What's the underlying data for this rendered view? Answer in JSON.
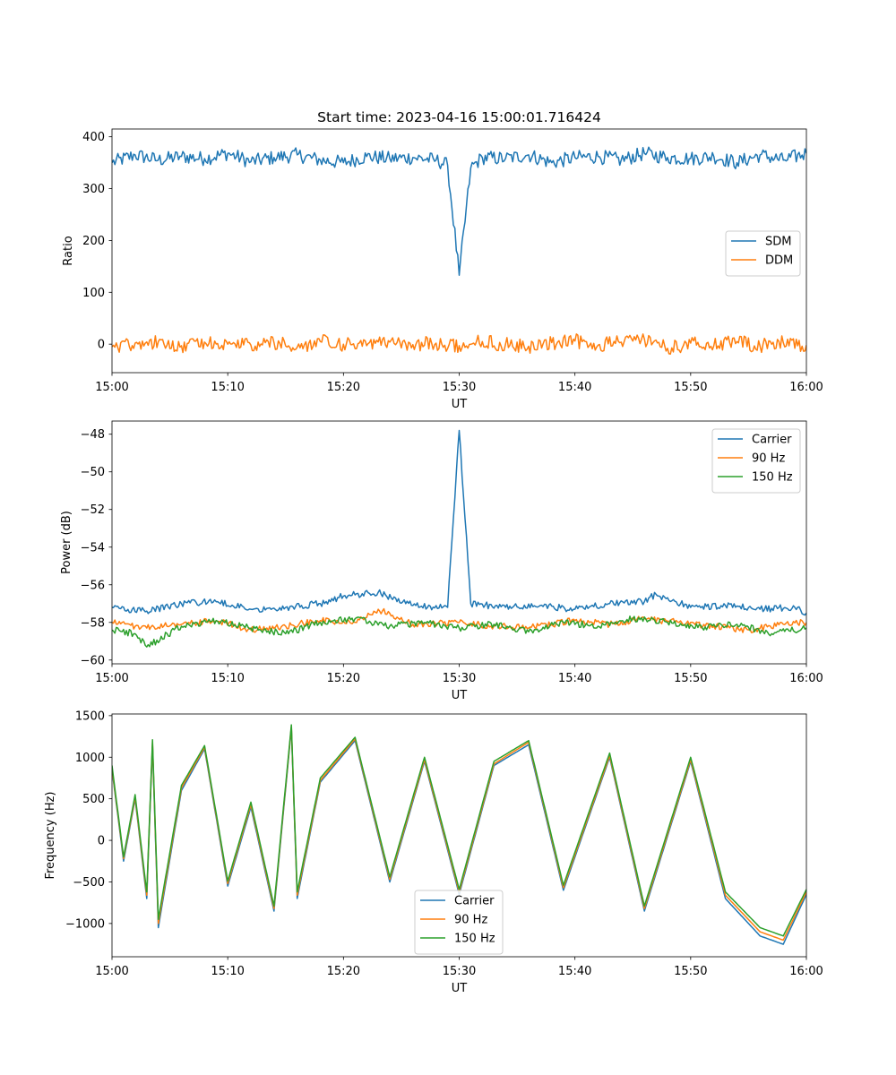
{
  "chart_data": [
    {
      "type": "line",
      "title": "Start time: 2023-04-16 15:00:01.716424",
      "xlabel": "UT",
      "ylabel": "Ratio",
      "xlim": [
        "15:00",
        "16:00"
      ],
      "ylim": [
        -55,
        415
      ],
      "xticks": [
        "15:00",
        "15:10",
        "15:20",
        "15:30",
        "15:40",
        "15:50",
        "16:00"
      ],
      "yticks": [
        0,
        100,
        200,
        300,
        400
      ],
      "legend_position": "center-right",
      "series": [
        {
          "name": "SDM",
          "color": "#1f77b4",
          "x": [
            "15:00",
            "15:02",
            "15:04",
            "15:06",
            "15:08",
            "15:10",
            "15:12",
            "15:14",
            "15:16",
            "15:18",
            "15:20",
            "15:22",
            "15:24",
            "15:26",
            "15:28",
            "15:29",
            "15:30",
            "15:31",
            "15:32",
            "15:34",
            "15:36",
            "15:38",
            "15:40",
            "15:42",
            "15:44",
            "15:46",
            "15:48",
            "15:50",
            "15:52",
            "15:54",
            "15:56",
            "15:58",
            "16:00"
          ],
          "y": [
            350,
            365,
            355,
            362,
            358,
            368,
            352,
            360,
            365,
            355,
            350,
            362,
            358,
            360,
            355,
            345,
            133,
            340,
            360,
            358,
            365,
            350,
            360,
            362,
            355,
            368,
            360,
            358,
            362,
            350,
            365,
            355,
            368
          ]
        },
        {
          "name": "DDM",
          "color": "#ff7f0e",
          "x": [
            "15:00",
            "15:02",
            "15:04",
            "15:06",
            "15:08",
            "15:10",
            "15:12",
            "15:14",
            "15:16",
            "15:18",
            "15:20",
            "15:22",
            "15:24",
            "15:26",
            "15:28",
            "15:30",
            "15:32",
            "15:34",
            "15:36",
            "15:38",
            "15:40",
            "15:42",
            "15:44",
            "15:46",
            "15:48",
            "15:50",
            "15:52",
            "15:54",
            "15:56",
            "15:58",
            "16:00"
          ],
          "y": [
            -5,
            2,
            5,
            -3,
            4,
            0,
            -2,
            3,
            -6,
            5,
            0,
            -3,
            4,
            -1,
            2,
            -3,
            5,
            0,
            -4,
            3,
            6,
            -2,
            4,
            10,
            -8,
            2,
            -3,
            5,
            -4,
            3,
            -2
          ]
        }
      ]
    },
    {
      "type": "line",
      "title": "",
      "xlabel": "UT",
      "ylabel": "Power (dB)",
      "xlim": [
        "15:00",
        "16:00"
      ],
      "ylim": [
        -60.2,
        -47.3
      ],
      "xticks": [
        "15:00",
        "15:10",
        "15:20",
        "15:30",
        "15:40",
        "15:50",
        "16:00"
      ],
      "yticks": [
        -48,
        -50,
        -52,
        -54,
        -56,
        -58,
        -60
      ],
      "legend_position": "upper-right",
      "series": [
        {
          "name": "Carrier",
          "color": "#1f77b4",
          "x": [
            "15:00",
            "15:03",
            "15:06",
            "15:09",
            "15:12",
            "15:15",
            "15:18",
            "15:20",
            "15:23",
            "15:26",
            "15:29",
            "15:30",
            "15:31",
            "15:34",
            "15:37",
            "15:40",
            "15:43",
            "15:46",
            "15:47",
            "15:50",
            "15:53",
            "15:56",
            "15:59",
            "16:00"
          ],
          "y": [
            -57.2,
            -57.4,
            -57.0,
            -56.9,
            -57.3,
            -57.2,
            -57.0,
            -56.6,
            -56.4,
            -57.1,
            -57.2,
            -47.8,
            -57.0,
            -57.2,
            -57.1,
            -57.3,
            -57.0,
            -56.9,
            -56.5,
            -57.2,
            -57.1,
            -57.3,
            -57.2,
            -57.5
          ]
        },
        {
          "name": "90 Hz",
          "color": "#ff7f0e",
          "x": [
            "15:00",
            "15:03",
            "15:06",
            "15:09",
            "15:12",
            "15:15",
            "15:18",
            "15:21",
            "15:23",
            "15:26",
            "15:30",
            "15:33",
            "15:36",
            "15:40",
            "15:43",
            "15:46",
            "15:49",
            "15:52",
            "15:55",
            "15:58",
            "16:00"
          ],
          "y": [
            -58.0,
            -58.3,
            -58.1,
            -57.9,
            -58.4,
            -58.2,
            -57.9,
            -58.0,
            -57.3,
            -58.1,
            -58.0,
            -58.2,
            -58.3,
            -57.9,
            -58.1,
            -57.8,
            -58.0,
            -58.2,
            -58.4,
            -58.1,
            -58.0
          ]
        },
        {
          "name": "150 Hz",
          "color": "#2ca02c",
          "x": [
            "15:00",
            "15:02",
            "15:03",
            "15:06",
            "15:09",
            "15:12",
            "15:15",
            "15:18",
            "15:21",
            "15:24",
            "15:27",
            "15:30",
            "15:33",
            "15:36",
            "15:39",
            "15:42",
            "15:45",
            "15:48",
            "15:51",
            "15:54",
            "15:57",
            "16:00"
          ],
          "y": [
            -58.4,
            -58.6,
            -59.3,
            -58.2,
            -57.9,
            -58.3,
            -58.6,
            -58.0,
            -57.8,
            -58.2,
            -58.0,
            -58.3,
            -58.1,
            -58.5,
            -58.0,
            -58.2,
            -57.8,
            -58.0,
            -58.3,
            -58.1,
            -58.6,
            -58.3
          ]
        }
      ]
    },
    {
      "type": "line",
      "title": "",
      "xlabel": "UT",
      "ylabel": "Frequency (Hz)",
      "xlim": [
        "15:00",
        "16:00"
      ],
      "ylim": [
        -1400,
        1520
      ],
      "xticks": [
        "15:00",
        "15:10",
        "15:20",
        "15:30",
        "15:40",
        "15:50",
        "16:00"
      ],
      "yticks": [
        1500,
        1000,
        500,
        0,
        -500,
        -1000
      ],
      "legend_position": "lower-center",
      "series": [
        {
          "name": "Carrier",
          "color": "#1f77b4",
          "x": [
            "15:00",
            "15:01",
            "15:02",
            "15:03",
            "15:03.5",
            "15:04",
            "15:06",
            "15:08",
            "15:10",
            "15:12",
            "15:14",
            "15:15.5",
            "15:16",
            "15:18",
            "15:21",
            "15:24",
            "15:27",
            "15:30",
            "15:33",
            "15:36",
            "15:39",
            "15:43",
            "15:46",
            "15:50",
            "15:53",
            "15:56",
            "15:58",
            "16:00"
          ],
          "y": [
            850,
            -250,
            500,
            -700,
            1150,
            -1050,
            600,
            1100,
            -550,
            400,
            -850,
            1350,
            -700,
            700,
            1200,
            -500,
            950,
            -650,
            900,
            1150,
            -600,
            1000,
            -850,
            950,
            -700,
            -1150,
            -1250,
            -650
          ]
        },
        {
          "name": "90 Hz",
          "color": "#ff7f0e",
          "x": [
            "15:00",
            "15:01",
            "15:02",
            "15:03",
            "15:03.5",
            "15:04",
            "15:06",
            "15:08",
            "15:10",
            "15:12",
            "15:14",
            "15:15.5",
            "15:16",
            "15:18",
            "15:21",
            "15:24",
            "15:27",
            "15:30",
            "15:33",
            "15:36",
            "15:39",
            "15:43",
            "15:46",
            "15:50",
            "15:53",
            "15:56",
            "15:58",
            "16:00"
          ],
          "y": [
            870,
            -220,
            520,
            -660,
            1180,
            -1000,
            630,
            1120,
            -520,
            430,
            -820,
            1370,
            -660,
            720,
            1220,
            -470,
            970,
            -620,
            920,
            1180,
            -570,
            1020,
            -820,
            970,
            -660,
            -1100,
            -1200,
            -620
          ]
        },
        {
          "name": "150 Hz",
          "color": "#2ca02c",
          "x": [
            "15:00",
            "15:01",
            "15:02",
            "15:03",
            "15:03.5",
            "15:04",
            "15:06",
            "15:08",
            "15:10",
            "15:12",
            "15:14",
            "15:15.5",
            "15:16",
            "15:18",
            "15:21",
            "15:24",
            "15:27",
            "15:30",
            "15:33",
            "15:36",
            "15:39",
            "15:43",
            "15:46",
            "15:50",
            "15:53",
            "15:56",
            "15:58",
            "16:00"
          ],
          "y": [
            900,
            -200,
            550,
            -620,
            1210,
            -950,
            660,
            1140,
            -490,
            460,
            -790,
            1390,
            -620,
            750,
            1240,
            -440,
            1000,
            -590,
            950,
            1200,
            -540,
            1050,
            -790,
            1000,
            -620,
            -1050,
            -1150,
            -590
          ]
        }
      ]
    }
  ]
}
